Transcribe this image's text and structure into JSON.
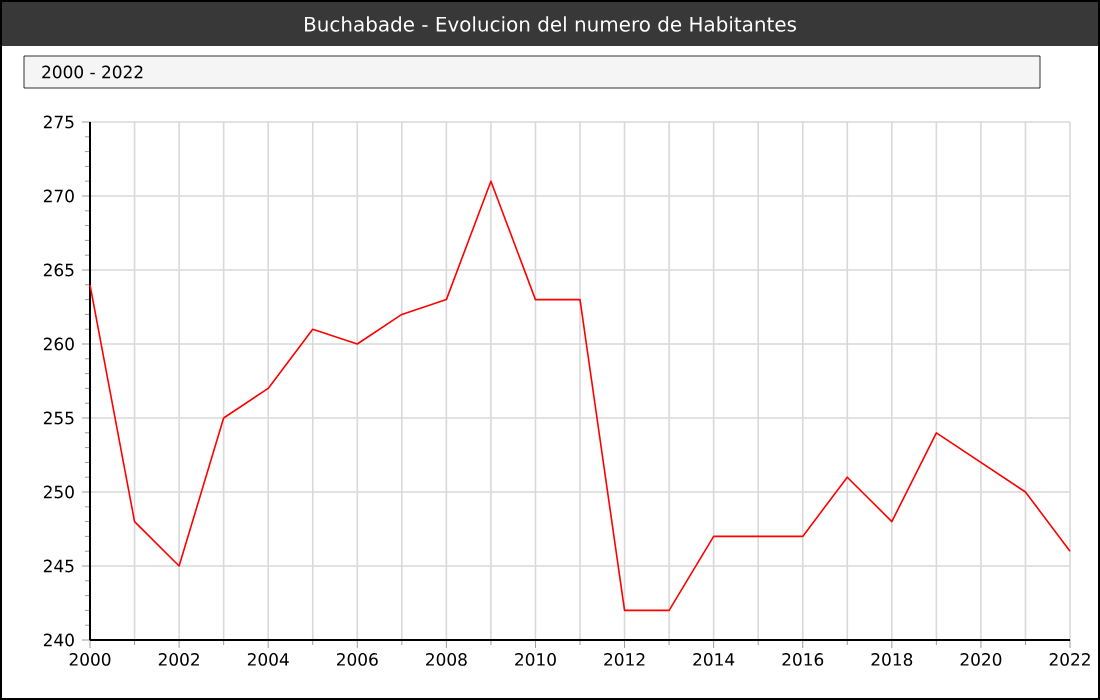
{
  "chart_data": {
    "type": "line",
    "title": "Buchabade - Evolucion del numero de Habitantes",
    "subtitle": "2000 - 2022",
    "x": [
      2000,
      2001,
      2002,
      2003,
      2004,
      2005,
      2006,
      2007,
      2008,
      2009,
      2010,
      2011,
      2012,
      2013,
      2014,
      2015,
      2016,
      2017,
      2018,
      2019,
      2020,
      2021,
      2022
    ],
    "series": [
      {
        "color": "#ff0000",
        "values": [
          264,
          248,
          245,
          255,
          257,
          261,
          260,
          262,
          263,
          271,
          263,
          263,
          242,
          242,
          247,
          247,
          247,
          251,
          248,
          254,
          252,
          250,
          246
        ]
      }
    ],
    "xlim": [
      2000,
      2022
    ],
    "xticks": [
      2000,
      2002,
      2004,
      2006,
      2008,
      2010,
      2012,
      2014,
      2016,
      2018,
      2020,
      2022
    ],
    "ylim": [
      240,
      275
    ],
    "yticks": [
      240,
      245,
      250,
      255,
      260,
      265,
      270,
      275
    ],
    "grid": true,
    "marker": "none",
    "line_style": "solid"
  }
}
